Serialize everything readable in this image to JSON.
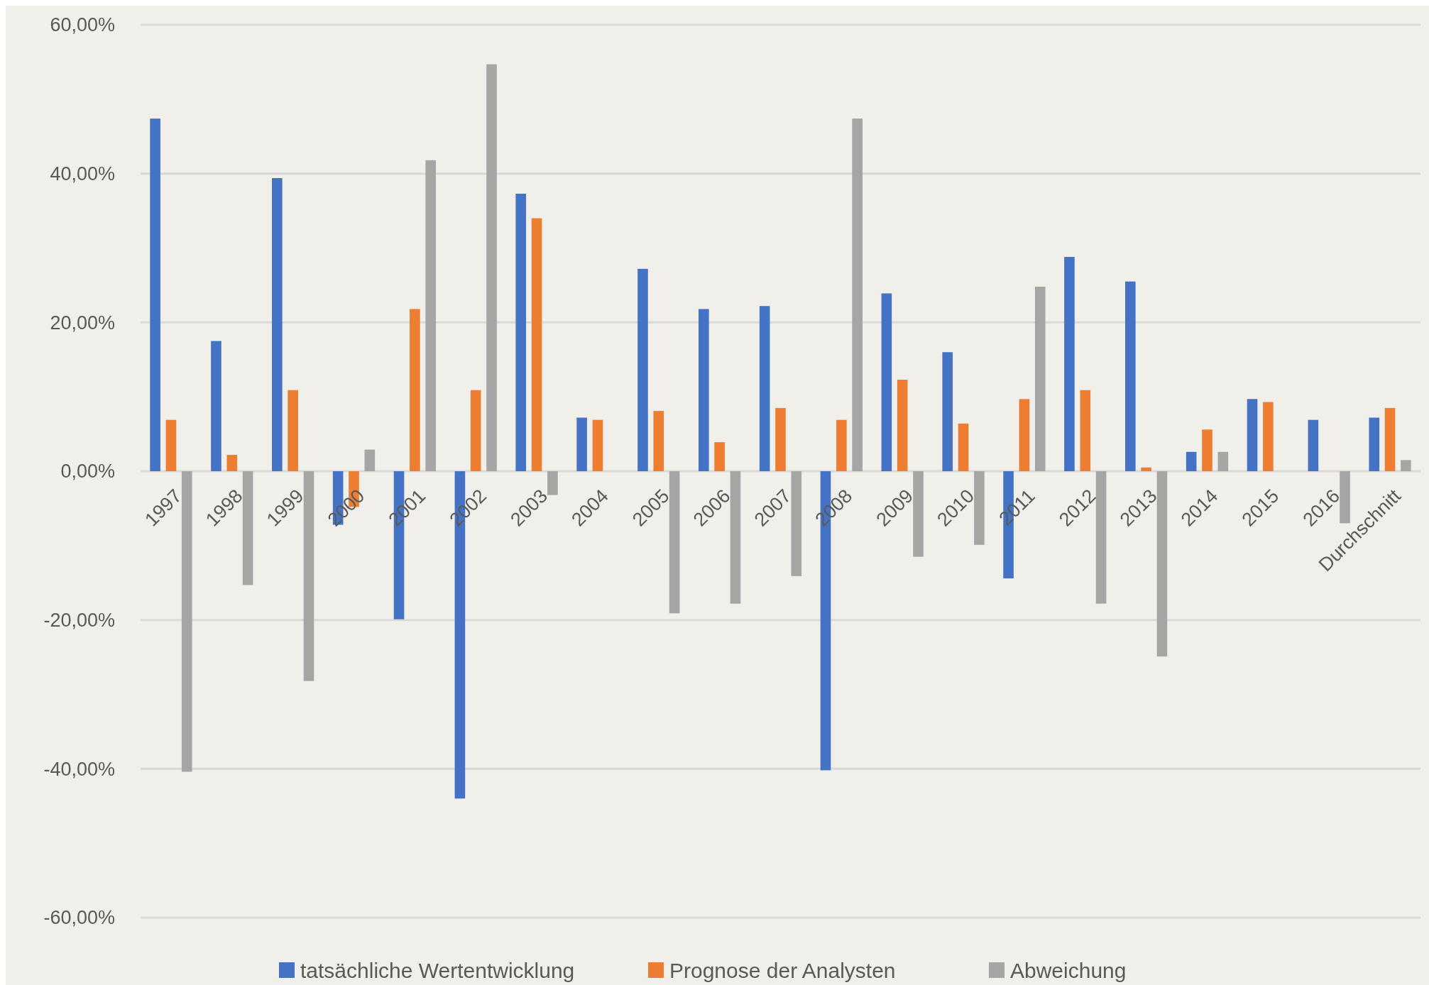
{
  "chart_data": {
    "type": "bar",
    "categories": [
      "1997",
      "1998",
      "1999",
      "2000",
      "2001",
      "2002",
      "2003",
      "2004",
      "2005",
      "2006",
      "2007",
      "2008",
      "2009",
      "2010",
      "2011",
      "2012",
      "2013",
      "2014",
      "2015",
      "2016",
      "Durchschnitt"
    ],
    "series": [
      {
        "name": "tatsächliche Wertentwicklung",
        "color": "#4472c4",
        "values": [
          47.4,
          17.5,
          39.4,
          -7.2,
          -19.9,
          -44,
          37.3,
          7.2,
          27.2,
          21.8,
          22.2,
          -40.2,
          23.9,
          16,
          -14.4,
          28.8,
          25.5,
          2.6,
          9.7,
          6.9,
          7.2
        ]
      },
      {
        "name": "Prognose der Analysten",
        "color": "#ed7d31",
        "values": [
          6.9,
          2.2,
          10.9,
          -4.8,
          21.8,
          10.9,
          34,
          6.9,
          8.1,
          3.9,
          8.5,
          6.9,
          12.3,
          6.4,
          9.7,
          10.9,
          0.5,
          5.6,
          9.3,
          null,
          8.5
        ]
      },
      {
        "name": "Abweichung",
        "color": "#a5a5a5",
        "values": [
          -40.4,
          -15.3,
          -28.2,
          2.9,
          41.8,
          54.7,
          -3.2,
          null,
          -19.1,
          -17.8,
          -14.1,
          47.4,
          -11.5,
          -9.9,
          24.8,
          -17.8,
          -24.9,
          2.6,
          null,
          -7,
          1.5
        ]
      }
    ],
    "ylim": [
      -60,
      60
    ],
    "yticks": [
      {
        "value": -60,
        "label": "-60,00%"
      },
      {
        "value": -40,
        "label": "-40,00%"
      },
      {
        "value": -20,
        "label": "-20,00%"
      },
      {
        "value": 0,
        "label": "0,00%"
      },
      {
        "value": 20,
        "label": "20,00%"
      },
      {
        "value": 40,
        "label": "40,00%"
      },
      {
        "value": 60,
        "label": "60,00%"
      }
    ],
    "grid": "y",
    "legend": "bottom"
  }
}
